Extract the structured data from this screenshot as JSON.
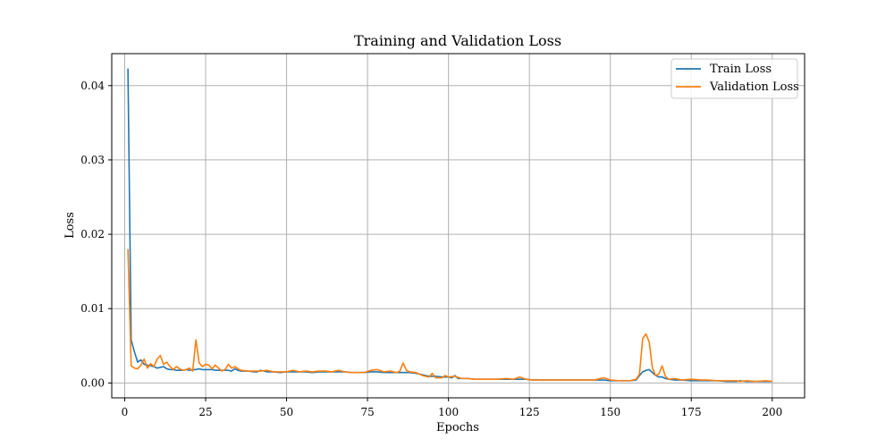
{
  "chart_data": {
    "type": "line",
    "title": "Training and Validation Loss",
    "xlabel": "Epochs",
    "ylabel": "Loss",
    "xlim": [
      -4,
      210
    ],
    "ylim": [
      -0.002,
      0.0443
    ],
    "xticks": [
      0,
      25,
      50,
      75,
      100,
      125,
      150,
      175,
      200
    ],
    "yticks": [
      0.0,
      0.01,
      0.02,
      0.03,
      0.04
    ],
    "ytick_labels": [
      "0.00",
      "0.01",
      "0.02",
      "0.03",
      "0.04"
    ],
    "grid": true,
    "legend_position": "top-right",
    "series": [
      {
        "name": "Train Loss",
        "color": "#1f77b4",
        "points": [
          [
            1,
            0.0423
          ],
          [
            2,
            0.0058
          ],
          [
            3,
            0.0042
          ],
          [
            4,
            0.0028
          ],
          [
            5,
            0.0031
          ],
          [
            6,
            0.0025
          ],
          [
            7,
            0.0024
          ],
          [
            8,
            0.0023
          ],
          [
            9,
            0.0022
          ],
          [
            10,
            0.002
          ],
          [
            11,
            0.0021
          ],
          [
            12,
            0.0022
          ],
          [
            13,
            0.0019
          ],
          [
            14,
            0.0018
          ],
          [
            15,
            0.0018
          ],
          [
            16,
            0.0017
          ],
          [
            17,
            0.0017
          ],
          [
            18,
            0.0017
          ],
          [
            19,
            0.0018
          ],
          [
            20,
            0.0017
          ],
          [
            21,
            0.0018
          ],
          [
            22,
            0.0018
          ],
          [
            23,
            0.0019
          ],
          [
            24,
            0.0018
          ],
          [
            25,
            0.0018
          ],
          [
            26,
            0.0018
          ],
          [
            27,
            0.0018
          ],
          [
            28,
            0.0017
          ],
          [
            29,
            0.0017
          ],
          [
            30,
            0.0017
          ],
          [
            32,
            0.0017
          ],
          [
            33,
            0.0016
          ],
          [
            34,
            0.0019
          ],
          [
            35,
            0.0017
          ],
          [
            36,
            0.0016
          ],
          [
            38,
            0.0016
          ],
          [
            40,
            0.0015
          ],
          [
            41,
            0.0015
          ],
          [
            42,
            0.0017
          ],
          [
            44,
            0.0015
          ],
          [
            46,
            0.0015
          ],
          [
            48,
            0.0014
          ],
          [
            50,
            0.0015
          ],
          [
            52,
            0.0015
          ],
          [
            54,
            0.0015
          ],
          [
            56,
            0.0015
          ],
          [
            58,
            0.0014
          ],
          [
            60,
            0.0015
          ],
          [
            62,
            0.0015
          ],
          [
            64,
            0.0015
          ],
          [
            66,
            0.0015
          ],
          [
            68,
            0.0015
          ],
          [
            70,
            0.0014
          ],
          [
            72,
            0.0014
          ],
          [
            74,
            0.0014
          ],
          [
            76,
            0.0015
          ],
          [
            78,
            0.0015
          ],
          [
            80,
            0.0014
          ],
          [
            82,
            0.0014
          ],
          [
            84,
            0.0014
          ],
          [
            86,
            0.0014
          ],
          [
            88,
            0.0014
          ],
          [
            90,
            0.0013
          ],
          [
            92,
            0.0011
          ],
          [
            94,
            0.0009
          ],
          [
            96,
            0.0009
          ],
          [
            98,
            0.0008
          ],
          [
            100,
            0.0008
          ],
          [
            101,
            0.0007
          ],
          [
            102,
            0.001
          ],
          [
            103,
            0.0006
          ],
          [
            104,
            0.0006
          ],
          [
            106,
            0.0006
          ],
          [
            108,
            0.0005
          ],
          [
            110,
            0.0005
          ],
          [
            112,
            0.0005
          ],
          [
            115,
            0.0005
          ],
          [
            118,
            0.0005
          ],
          [
            120,
            0.0005
          ],
          [
            122,
            0.0005
          ],
          [
            124,
            0.0005
          ],
          [
            126,
            0.0004
          ],
          [
            128,
            0.0004
          ],
          [
            130,
            0.0004
          ],
          [
            133,
            0.0004
          ],
          [
            136,
            0.0004
          ],
          [
            139,
            0.0004
          ],
          [
            142,
            0.0004
          ],
          [
            145,
            0.0004
          ],
          [
            148,
            0.0004
          ],
          [
            150,
            0.0003
          ],
          [
            153,
            0.0003
          ],
          [
            156,
            0.0003
          ],
          [
            158,
            0.0004
          ],
          [
            159,
            0.001
          ],
          [
            160,
            0.0015
          ],
          [
            161,
            0.0017
          ],
          [
            162,
            0.0018
          ],
          [
            163,
            0.0014
          ],
          [
            164,
            0.001
          ],
          [
            165,
            0.0008
          ],
          [
            166,
            0.0008
          ],
          [
            167,
            0.0006
          ],
          [
            168,
            0.0005
          ],
          [
            170,
            0.0004
          ],
          [
            172,
            0.0004
          ],
          [
            175,
            0.0003
          ],
          [
            178,
            0.0003
          ],
          [
            180,
            0.0003
          ],
          [
            183,
            0.0003
          ],
          [
            186,
            0.0002
          ],
          [
            189,
            0.0002
          ],
          [
            190,
            0.0003
          ],
          [
            192,
            0.0002
          ],
          [
            195,
            0.0002
          ],
          [
            198,
            0.0002
          ],
          [
            200,
            0.0002
          ]
        ]
      },
      {
        "name": "Validation Loss",
        "color": "#ff7f0e",
        "points": [
          [
            1,
            0.018
          ],
          [
            2,
            0.0023
          ],
          [
            3,
            0.002
          ],
          [
            4,
            0.0019
          ],
          [
            5,
            0.0024
          ],
          [
            6,
            0.0032
          ],
          [
            7,
            0.002
          ],
          [
            8,
            0.0026
          ],
          [
            9,
            0.0022
          ],
          [
            10,
            0.0032
          ],
          [
            11,
            0.0037
          ],
          [
            12,
            0.0025
          ],
          [
            13,
            0.0028
          ],
          [
            14,
            0.0022
          ],
          [
            15,
            0.0018
          ],
          [
            16,
            0.0022
          ],
          [
            17,
            0.0019
          ],
          [
            18,
            0.0017
          ],
          [
            19,
            0.0018
          ],
          [
            20,
            0.002
          ],
          [
            21,
            0.0016
          ],
          [
            22,
            0.0058
          ],
          [
            23,
            0.0027
          ],
          [
            24,
            0.0022
          ],
          [
            25,
            0.0025
          ],
          [
            26,
            0.0024
          ],
          [
            27,
            0.0019
          ],
          [
            28,
            0.0024
          ],
          [
            29,
            0.002
          ],
          [
            30,
            0.0016
          ],
          [
            31,
            0.0018
          ],
          [
            32,
            0.0025
          ],
          [
            33,
            0.002
          ],
          [
            34,
            0.0022
          ],
          [
            35,
            0.0019
          ],
          [
            36,
            0.0017
          ],
          [
            38,
            0.0016
          ],
          [
            40,
            0.0016
          ],
          [
            42,
            0.0016
          ],
          [
            44,
            0.0017
          ],
          [
            46,
            0.0015
          ],
          [
            48,
            0.0015
          ],
          [
            50,
            0.0015
          ],
          [
            52,
            0.0017
          ],
          [
            54,
            0.0015
          ],
          [
            56,
            0.0016
          ],
          [
            58,
            0.0015
          ],
          [
            60,
            0.0016
          ],
          [
            62,
            0.0016
          ],
          [
            64,
            0.0015
          ],
          [
            66,
            0.0017
          ],
          [
            68,
            0.0015
          ],
          [
            70,
            0.0014
          ],
          [
            72,
            0.0014
          ],
          [
            74,
            0.0014
          ],
          [
            76,
            0.0017
          ],
          [
            78,
            0.0018
          ],
          [
            80,
            0.0015
          ],
          [
            82,
            0.0016
          ],
          [
            84,
            0.0014
          ],
          [
            85,
            0.0016
          ],
          [
            86,
            0.0027
          ],
          [
            87,
            0.0017
          ],
          [
            88,
            0.0015
          ],
          [
            90,
            0.0014
          ],
          [
            92,
            0.001
          ],
          [
            94,
            0.0008
          ],
          [
            95,
            0.0013
          ],
          [
            96,
            0.0007
          ],
          [
            98,
            0.0007
          ],
          [
            99,
            0.001
          ],
          [
            100,
            0.0008
          ],
          [
            102,
            0.0009
          ],
          [
            104,
            0.0006
          ],
          [
            106,
            0.0006
          ],
          [
            108,
            0.0005
          ],
          [
            110,
            0.0005
          ],
          [
            112,
            0.0005
          ],
          [
            115,
            0.0005
          ],
          [
            118,
            0.0006
          ],
          [
            120,
            0.0005
          ],
          [
            122,
            0.0008
          ],
          [
            124,
            0.0005
          ],
          [
            126,
            0.0004
          ],
          [
            128,
            0.0004
          ],
          [
            130,
            0.0004
          ],
          [
            133,
            0.0004
          ],
          [
            136,
            0.0004
          ],
          [
            139,
            0.0004
          ],
          [
            142,
            0.0004
          ],
          [
            145,
            0.0004
          ],
          [
            148,
            0.0007
          ],
          [
            150,
            0.0004
          ],
          [
            153,
            0.0003
          ],
          [
            156,
            0.0003
          ],
          [
            158,
            0.0005
          ],
          [
            159,
            0.0012
          ],
          [
            160,
            0.006
          ],
          [
            161,
            0.0066
          ],
          [
            162,
            0.0055
          ],
          [
            163,
            0.002
          ],
          [
            164,
            0.001
          ],
          [
            165,
            0.0012
          ],
          [
            166,
            0.0023
          ],
          [
            167,
            0.0009
          ],
          [
            168,
            0.0005
          ],
          [
            170,
            0.0006
          ],
          [
            172,
            0.0004
          ],
          [
            175,
            0.0005
          ],
          [
            178,
            0.0004
          ],
          [
            180,
            0.0004
          ],
          [
            183,
            0.0003
          ],
          [
            186,
            0.0003
          ],
          [
            189,
            0.0003
          ],
          [
            190,
            0.0002
          ],
          [
            192,
            0.0003
          ],
          [
            195,
            0.0002
          ],
          [
            198,
            0.0003
          ],
          [
            200,
            0.0002
          ]
        ]
      }
    ]
  }
}
